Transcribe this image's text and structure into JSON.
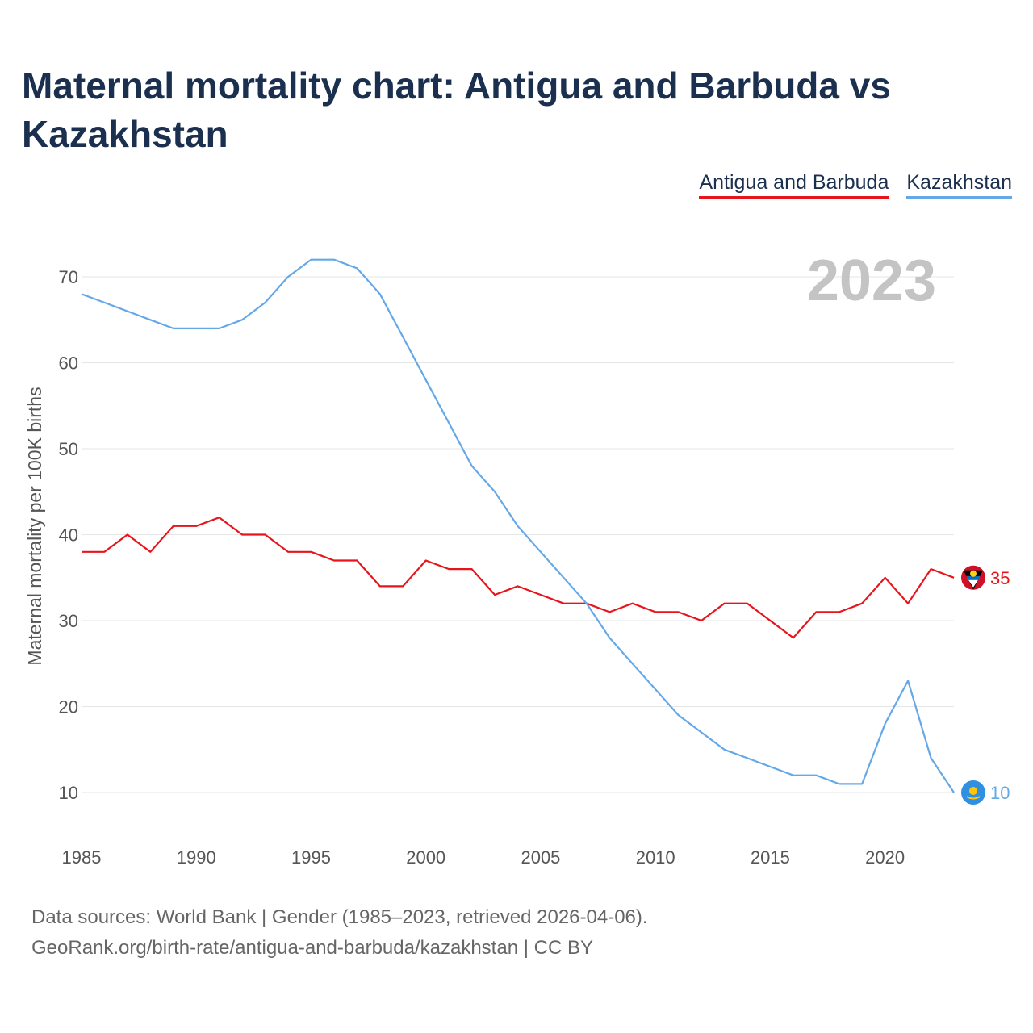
{
  "title": "Maternal mortality chart: Antigua and Barbuda vs Kazakhstan",
  "legend": {
    "antigua": "Antigua and Barbuda",
    "kazakhstan": "Kazakhstan"
  },
  "year_watermark": "2023",
  "footer": {
    "line1": "Data sources: World Bank | Gender (1985–2023, retrieved 2026-04-06).",
    "line2": "GeoRank.org/birth-rate/antigua-and-barbuda/kazakhstan | CC BY"
  },
  "chart_data": {
    "type": "line",
    "title": "Maternal mortality chart: Antigua and Barbuda vs Kazakhstan",
    "xlabel": "",
    "ylabel": "Maternal mortality per 100K births",
    "xlim": [
      1985,
      2023
    ],
    "ylim": [
      5,
      75
    ],
    "xticks": [
      "1985",
      "1990",
      "1995",
      "2000",
      "2005",
      "2010",
      "2015",
      "2020"
    ],
    "yticks": [
      "10",
      "20",
      "30",
      "40",
      "50",
      "60",
      "70"
    ],
    "grid": true,
    "x": [
      1985,
      1986,
      1987,
      1988,
      1989,
      1990,
      1991,
      1992,
      1993,
      1994,
      1995,
      1996,
      1997,
      1998,
      1999,
      2000,
      2001,
      2002,
      2003,
      2004,
      2005,
      2006,
      2007,
      2008,
      2009,
      2010,
      2011,
      2012,
      2013,
      2014,
      2015,
      2016,
      2017,
      2018,
      2019,
      2020,
      2021,
      2022,
      2023
    ],
    "series": [
      {
        "name": "Antigua and Barbuda",
        "color": "#e8141c",
        "end_label": "35",
        "values": [
          38,
          38,
          40,
          38,
          41,
          41,
          42,
          40,
          40,
          38,
          38,
          37,
          37,
          34,
          34,
          37,
          36,
          36,
          33,
          34,
          33,
          32,
          32,
          31,
          32,
          31,
          31,
          30,
          32,
          32,
          30,
          28,
          31,
          31,
          32,
          35,
          32,
          36,
          35
        ]
      },
      {
        "name": "Kazakhstan",
        "color": "#64a8e8",
        "end_label": "10",
        "values": [
          68,
          67,
          66,
          65,
          64,
          64,
          64,
          65,
          67,
          70,
          72,
          72,
          71,
          68,
          63,
          58,
          53,
          48,
          45,
          41,
          38,
          35,
          32,
          28,
          25,
          22,
          19,
          17,
          15,
          14,
          13,
          12,
          12,
          11,
          11,
          18,
          23,
          14,
          10
        ]
      }
    ]
  }
}
